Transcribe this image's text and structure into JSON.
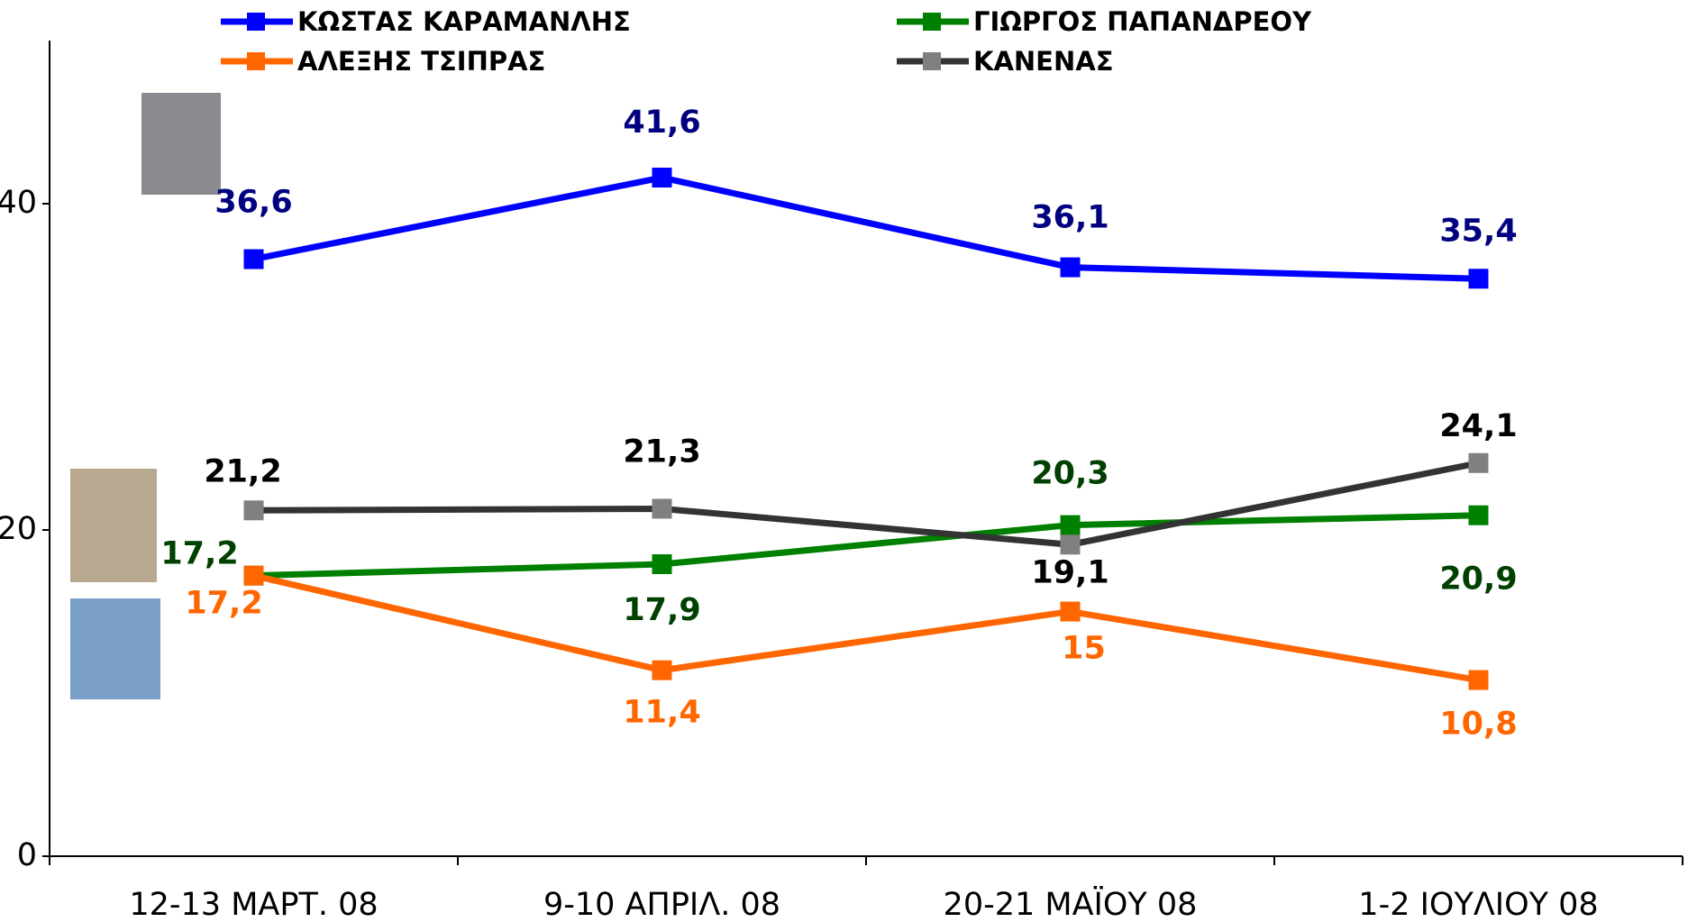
{
  "chart_data": {
    "type": "line",
    "categories": [
      "12-13 ΜΑΡΤ. 08",
      "9-10 ΑΠΡΙΛ. 08",
      "20-21 ΜΑΪΟΥ 08",
      "1-2 ΙΟΥΛΙΟΥ 08"
    ],
    "series": [
      {
        "name": "ΚΩΣΤΑΣ ΚΑΡΑΜΑΝΛΗΣ",
        "color": "#0000ff",
        "marker_color": "#0000ff",
        "label_color": "#000080",
        "values": [
          36.6,
          41.6,
          36.1,
          35.4
        ],
        "value_labels": [
          "36,6",
          "41,6",
          "36,1",
          "35,4"
        ]
      },
      {
        "name": "ΓΙΩΡΓΟΣ ΠΑΠΑΝΔΡΕΟΥ",
        "color": "#008000",
        "marker_color": "#008000",
        "label_color": "#004000",
        "values": [
          17.2,
          17.9,
          20.3,
          20.9
        ],
        "value_labels": [
          "17,2",
          "17,9",
          "20,3",
          "20,9"
        ]
      },
      {
        "name": "ΑΛΕΞΗΣ ΤΣΙΠΡΑΣ",
        "color": "#ff6600",
        "marker_color": "#ff6600",
        "label_color": "#ff6600",
        "values": [
          17.2,
          11.4,
          15,
          10.8
        ],
        "value_labels": [
          "17,2",
          "11,4",
          "15",
          "10,8"
        ]
      },
      {
        "name": "ΚΑΝΕΝΑΣ",
        "color": "#333333",
        "marker_color": "#808080",
        "label_color": "#000000",
        "values": [
          21.2,
          21.3,
          19.1,
          24.1
        ],
        "value_labels": [
          "21,2",
          "21,3",
          "19,1",
          "24,1"
        ]
      }
    ],
    "ylim": [
      0,
      50
    ],
    "yticks": [
      0,
      20,
      40
    ]
  }
}
